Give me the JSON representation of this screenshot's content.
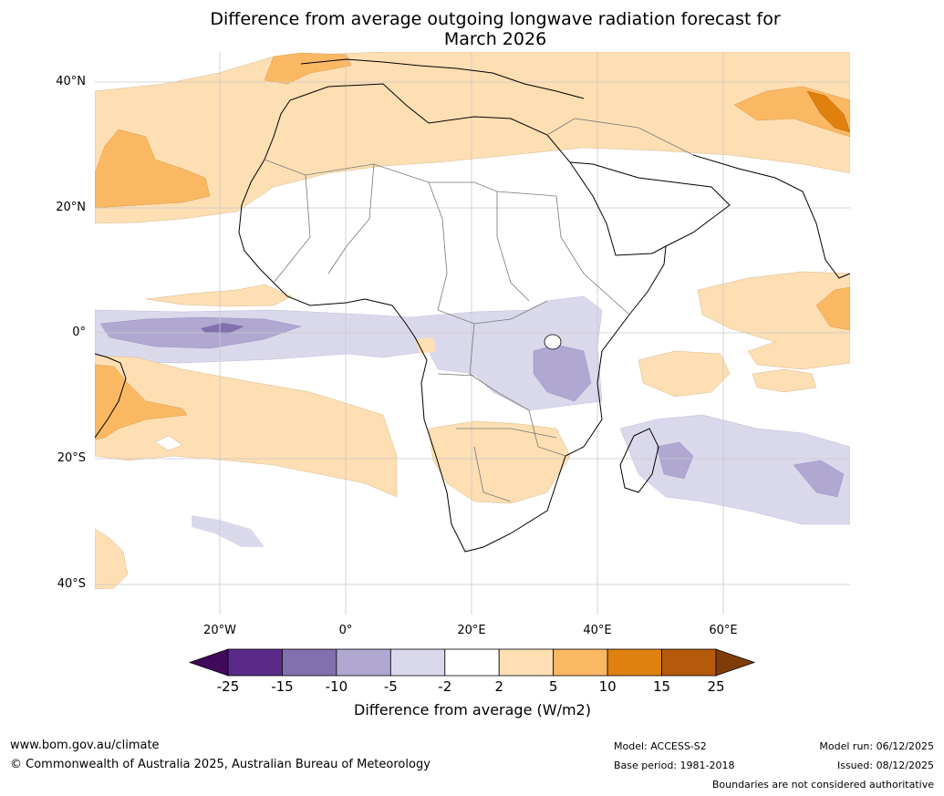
{
  "title_line1": "Difference from average outgoing longwave radiation forecast for",
  "title_line2": "March 2026",
  "latitude_labels": [
    "40°N",
    "20°N",
    "0°",
    "20°S",
    "40°S"
  ],
  "longitude_labels": [
    "20°W",
    "0°",
    "20°E",
    "40°E",
    "60°E"
  ],
  "colorbar": {
    "title": "Difference from average (W/m2)",
    "ticks": [
      "-25",
      "-15",
      "-10",
      "-5",
      "-2",
      "2",
      "5",
      "10",
      "15",
      "25"
    ],
    "colors": [
      "#3f0a5b",
      "#5a2a89",
      "#8270ae",
      "#b0a8d1",
      "#dad9ec",
      "#ffffff",
      "#fddfb3",
      "#fbb863",
      "#e0810f",
      "#b5590a",
      "#7f3c08"
    ]
  },
  "footer": {
    "website": "www.bom.gov.au/climate",
    "copyright": "© Commonwealth of Australia 2025, Australian Bureau of Meteorology",
    "model": "Model: ACCESS-S2",
    "base_period": "Base period: 1981-2018",
    "model_run": "Model run: 06/12/2025",
    "issued": "Issued: 08/12/2025",
    "disclaimer": "Boundaries are not considered authoritative"
  }
}
